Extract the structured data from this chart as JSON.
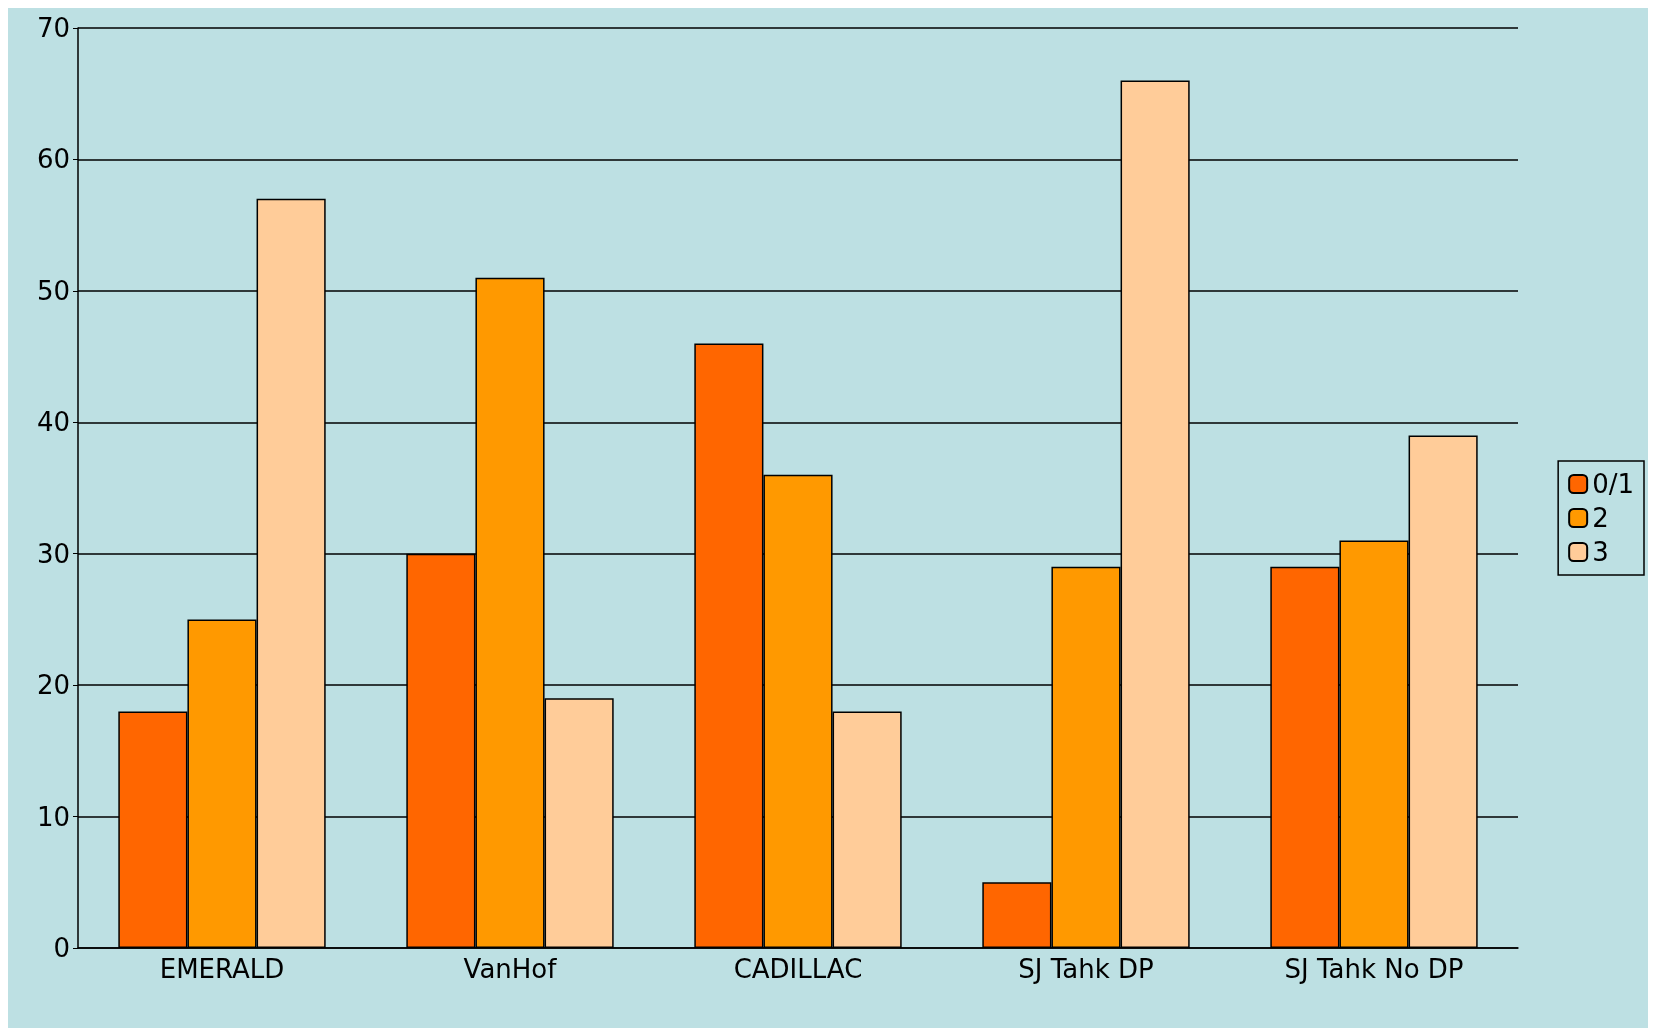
{
  "chart_data": {
    "type": "bar",
    "categories": [
      "EMERALD",
      "VanHof",
      "CADILLAC",
      "SJ Tahk DP",
      "SJ Tahk No DP"
    ],
    "series": [
      {
        "name": "0/1",
        "color": "#ff6600",
        "values": [
          18,
          30,
          46,
          5,
          29
        ]
      },
      {
        "name": "2",
        "color": "#ff9900",
        "values": [
          25,
          51,
          36,
          29,
          31
        ]
      },
      {
        "name": "3",
        "color": "#ffcc99",
        "values": [
          57,
          19,
          18,
          66,
          39
        ]
      }
    ],
    "ylim": [
      0,
      70
    ],
    "yticks": [
      0,
      10,
      20,
      30,
      40,
      50,
      60,
      70
    ],
    "grid": "y",
    "legend": "right"
  }
}
